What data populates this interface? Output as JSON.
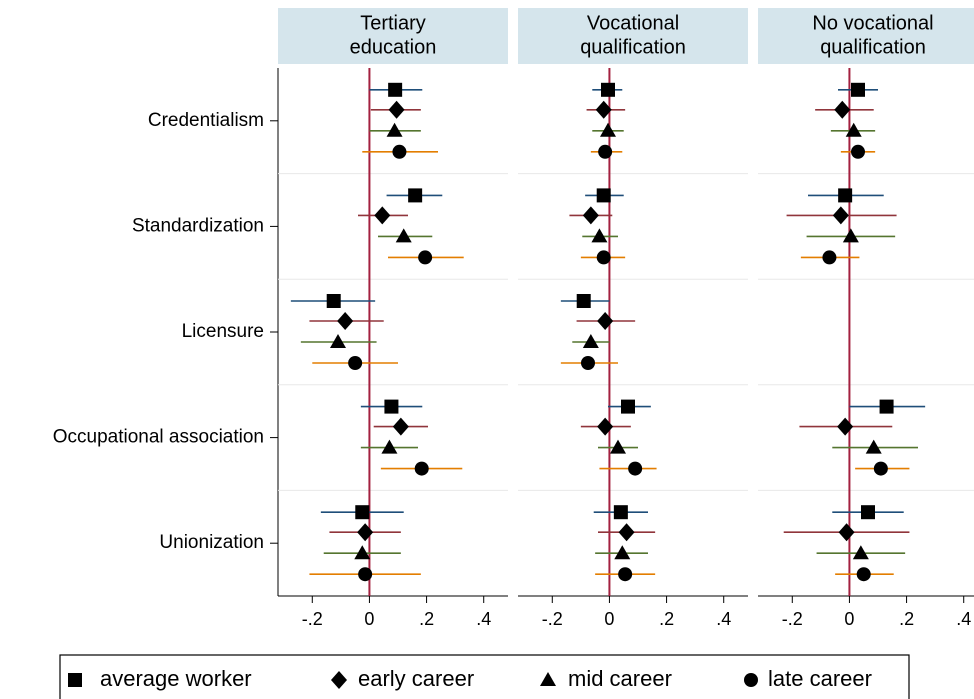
{
  "chart_data": {
    "type": "dot",
    "categories": [
      "Credentialism",
      "Standardization",
      "Licensure",
      "Occupational association",
      "Unionization"
    ],
    "xlim": [
      -0.32,
      0.485
    ],
    "xticks": [
      {
        "value": -0.2,
        "label": "-.2"
      },
      0,
      {
        "value": 0.2,
        "label": ".2"
      },
      {
        "value": 0.4,
        "label": ".4"
      }
    ],
    "reference_line": 0,
    "series": [
      {
        "name": "average worker",
        "color": "#1f4e79",
        "marker": "square"
      },
      {
        "name": "early career",
        "color": "#90353b",
        "marker": "diamond"
      },
      {
        "name": "mid career",
        "color": "#55752f",
        "marker": "triangle"
      },
      {
        "name": "late career",
        "color": "#e37e00",
        "marker": "circle"
      }
    ],
    "panels": [
      {
        "title": [
          "Tertiary",
          "education"
        ],
        "values": [
          [
            0.09,
            0.16,
            -0.125,
            0.077,
            -0.025
          ],
          [
            0.095,
            0.045,
            -0.085,
            0.11,
            -0.015
          ],
          [
            0.088,
            0.12,
            -0.11,
            0.07,
            -0.025
          ],
          [
            0.105,
            0.195,
            -0.05,
            0.183,
            -0.015
          ]
        ],
        "lower": [
          [
            0.0,
            0.06,
            -0.275,
            -0.03,
            -0.17
          ],
          [
            0.005,
            -0.04,
            -0.21,
            0.015,
            -0.14
          ],
          [
            0.0,
            0.03,
            -0.24,
            -0.03,
            -0.16
          ],
          [
            -0.025,
            0.065,
            -0.2,
            0.04,
            -0.21
          ]
        ],
        "upper": [
          [
            0.185,
            0.255,
            0.02,
            0.185,
            0.12
          ],
          [
            0.18,
            0.135,
            0.05,
            0.205,
            0.11
          ],
          [
            0.18,
            0.22,
            0.025,
            0.17,
            0.11
          ],
          [
            0.24,
            0.33,
            0.1,
            0.325,
            0.18
          ]
        ]
      },
      {
        "title": [
          "Vocational",
          "qualification"
        ],
        "values": [
          [
            -0.005,
            -0.02,
            -0.09,
            0.065,
            0.04
          ],
          [
            -0.02,
            -0.065,
            -0.015,
            -0.015,
            0.06
          ],
          [
            -0.005,
            -0.035,
            -0.065,
            0.03,
            0.045
          ],
          [
            -0.015,
            -0.02,
            -0.075,
            0.09,
            0.055
          ]
        ],
        "lower": [
          [
            -0.06,
            -0.085,
            -0.17,
            -0.005,
            -0.055
          ],
          [
            -0.08,
            -0.14,
            -0.115,
            -0.1,
            -0.04
          ],
          [
            -0.06,
            -0.095,
            -0.13,
            -0.04,
            -0.05
          ],
          [
            -0.065,
            -0.1,
            -0.17,
            -0.035,
            -0.05
          ]
        ],
        "upper": [
          [
            0.045,
            0.05,
            0.0,
            0.145,
            0.135
          ],
          [
            0.055,
            0.01,
            0.09,
            0.075,
            0.16
          ],
          [
            0.05,
            0.03,
            0.0,
            0.1,
            0.135
          ],
          [
            0.045,
            0.055,
            0.03,
            0.165,
            0.16
          ]
        ]
      },
      {
        "title": [
          "No vocational",
          "qualification"
        ],
        "values": [
          [
            0.03,
            -0.015,
            null,
            0.13,
            0.065
          ],
          [
            -0.025,
            -0.03,
            null,
            -0.015,
            -0.01
          ],
          [
            0.015,
            0.005,
            null,
            0.085,
            0.04
          ],
          [
            0.03,
            -0.07,
            null,
            0.11,
            0.05
          ]
        ],
        "lower": [
          [
            -0.04,
            -0.145,
            null,
            0.0,
            -0.06
          ],
          [
            -0.12,
            -0.22,
            null,
            -0.175,
            -0.23
          ],
          [
            -0.065,
            -0.15,
            null,
            -0.06,
            -0.115
          ],
          [
            -0.03,
            -0.17,
            null,
            0.02,
            -0.05
          ]
        ],
        "upper": [
          [
            0.1,
            0.12,
            null,
            0.265,
            0.19
          ],
          [
            0.085,
            0.165,
            null,
            0.15,
            0.21
          ],
          [
            0.09,
            0.16,
            null,
            0.24,
            0.195
          ],
          [
            0.09,
            0.035,
            null,
            0.21,
            0.155
          ]
        ]
      }
    ]
  }
}
